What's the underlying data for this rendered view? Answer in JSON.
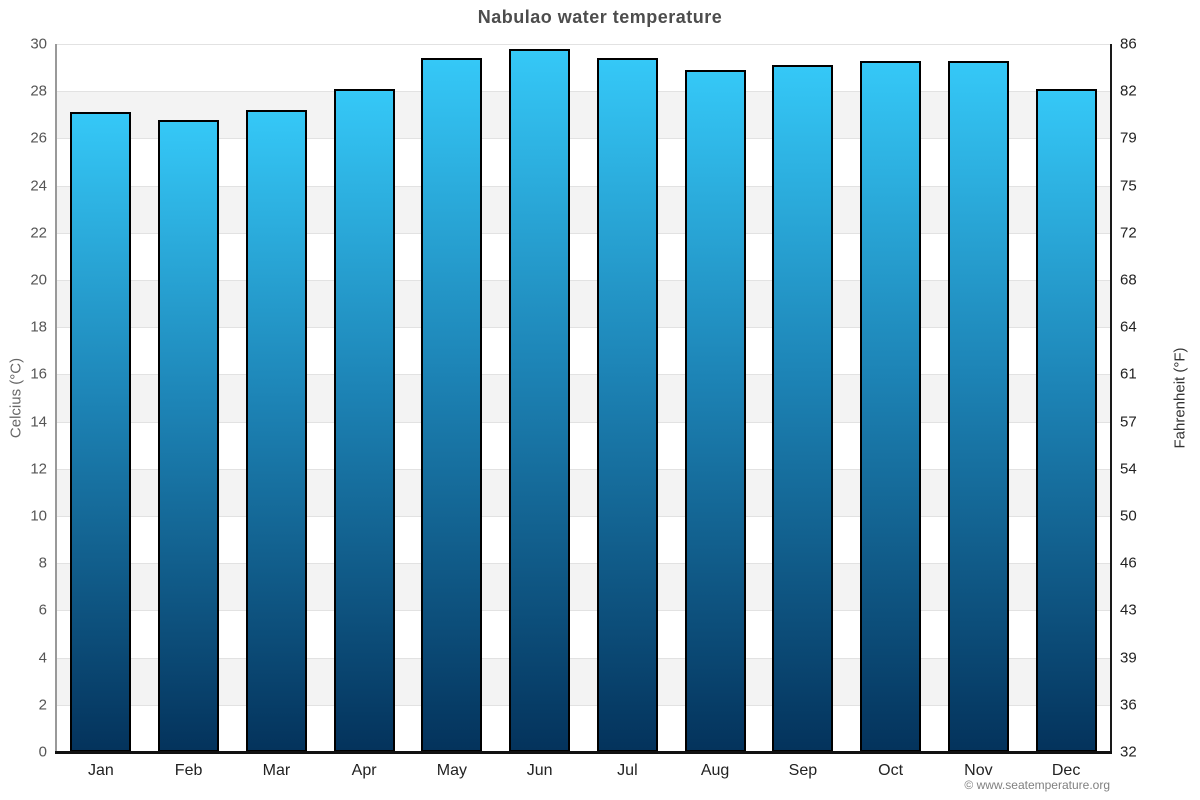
{
  "title": "Nabulao water temperature",
  "footer": {
    "text": "© www.seatemperature.org"
  },
  "chart_data": {
    "type": "bar",
    "title": "Nabulao water temperature",
    "categories": [
      "Jan",
      "Feb",
      "Mar",
      "Apr",
      "May",
      "Jun",
      "Jul",
      "Aug",
      "Sep",
      "Oct",
      "Nov",
      "Dec"
    ],
    "series": [
      {
        "name": "Water temperature",
        "unit": "°C",
        "values": [
          27.1,
          26.8,
          27.2,
          28.1,
          29.4,
          29.8,
          29.4,
          28.9,
          29.1,
          29.3,
          29.3,
          28.1
        ]
      }
    ],
    "xlabel": "",
    "ylabel_left": "Celcius (°C)",
    "ylabel_right": "Fahrenheit (°F)",
    "ylim_celsius": [
      0,
      30
    ],
    "yticks_celsius": [
      0,
      2,
      4,
      6,
      8,
      10,
      12,
      14,
      16,
      18,
      20,
      22,
      24,
      26,
      28,
      30
    ],
    "yticks_fahrenheit": [
      32,
      36,
      39,
      43,
      46,
      50,
      54,
      57,
      61,
      64,
      68,
      72,
      75,
      79,
      82,
      86
    ],
    "legend": "none",
    "grid": "alternating horizontal bands every 2°C with light gridlines",
    "colors": {
      "bar_gradient_top": "#35c8f7",
      "bar_gradient_mid": "#1d84b6",
      "bar_gradient_bottom": "#04335c",
      "bar_border": "#000000",
      "band_gray": "#f3f3f3",
      "gridline": "#e2e2e2",
      "title_text": "#4d4d4d",
      "left_tick_text": "#555555",
      "right_tick_text": "#222222",
      "left_spine": "#999999",
      "right_spine": "#1a1a1a",
      "bottom_axis": "#111111",
      "footer_text": "#808080"
    }
  }
}
